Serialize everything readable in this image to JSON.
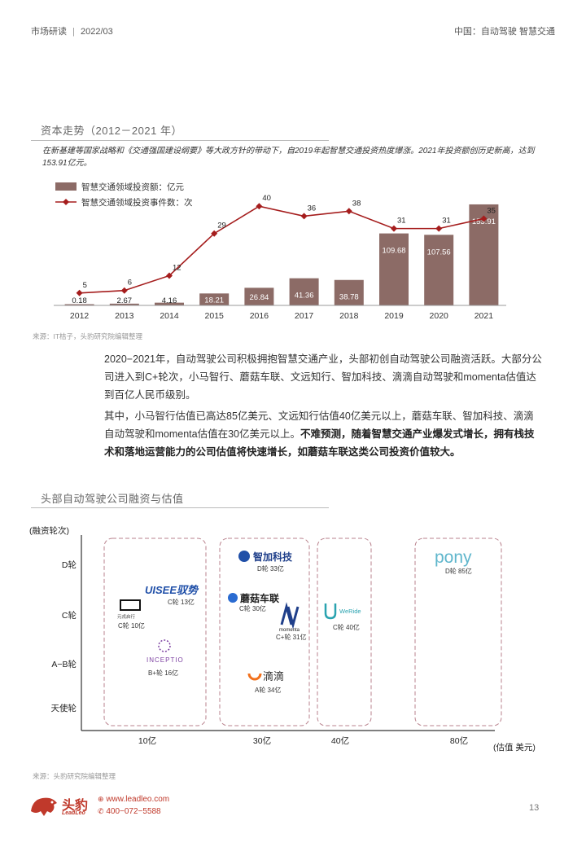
{
  "header": {
    "left": "市场研读",
    "date": "2022/03",
    "right": "中国：自动驾驶 智慧交通"
  },
  "section1": {
    "title": "资本走势（2012－2021 年）",
    "caption": "在新基建等国家战略和《交通强国建设纲要》等大政方针的带动下，自2019年起智慧交通投资热度爆涨。2021年投资额创历史新高，达到153.91亿元。",
    "source": "来源：IT桔子，头豹研究院编辑整理"
  },
  "chart_data": {
    "type": "bar",
    "categories": [
      "2012",
      "2013",
      "2014",
      "2015",
      "2016",
      "2017",
      "2018",
      "2019",
      "2020",
      "2021"
    ],
    "series": [
      {
        "name": "智慧交通领域投资额：亿元",
        "kind": "bar",
        "color": "#8c6b66",
        "values": [
          0.18,
          2.67,
          4.16,
          18.21,
          26.84,
          41.36,
          38.78,
          109.68,
          107.56,
          153.91
        ]
      },
      {
        "name": "智慧交通领域投资事件数：次",
        "kind": "line",
        "color": "#a51d1d",
        "values": [
          5,
          6,
          12,
          29,
          40,
          36,
          38,
          31,
          31,
          35
        ]
      }
    ],
    "bar_labels": [
      "0.18",
      "2.67",
      "4.16",
      "18.21",
      "26.84",
      "41.36",
      "38.78",
      "109.68",
      "107.56",
      "153.91"
    ],
    "ylim_bar": [
      0,
      170
    ],
    "ylim_line": [
      0,
      45
    ],
    "legend_position": "top-left",
    "grid": false
  },
  "paragraph1": "2020−2021年，自动驾驶公司积极拥抱智慧交通产业，头部初创自动驾驶公司融资活跃。大部分公司进入到C+轮次，小马智行、蘑菇车联、文远知行、智加科技、滴滴自动驾驶和momenta估值达到百亿人民币级别。",
  "paragraph2": {
    "normal": "其中，小马智行估值已高达85亿美元、文远知行估值40亿美元以上，蘑菇车联、智加科技、滴滴自动驾驶和momenta估值在30亿美元以上。",
    "bold": "不难预测，随着智慧交通产业爆发式增长，拥有栈技术和落地运营能力的公司估值将快速增长，如蘑菇车联这类公司投资价值较大。"
  },
  "section2": {
    "title": "头部自动驾驶公司融资与估值",
    "y_axis_label": "(融资轮次)",
    "x_axis_label": "(估值 美元)",
    "y_ticks": [
      "D轮",
      "C轮",
      "A−B轮",
      "天使轮"
    ],
    "x_ticks": [
      "10亿",
      "30亿",
      "40亿",
      "80亿"
    ],
    "companies": [
      {
        "logo": "UISEE驭势",
        "note": "C轮 13亿"
      },
      {
        "logo": "元戎启行",
        "note": "C轮 10亿"
      },
      {
        "logo": "INCEPTIO",
        "note": "B+轮 16亿"
      },
      {
        "logo": "智加科技",
        "note": "D轮 33亿"
      },
      {
        "logo": "蘑菇车联",
        "note": "C轮 30亿"
      },
      {
        "logo": "momenta",
        "note": "C+轮 31亿"
      },
      {
        "logo": "滴滴",
        "note": "A轮 34亿"
      },
      {
        "logo": "WeRide",
        "note": "C轮 40亿"
      },
      {
        "logo": "pony",
        "note": "D轮 85亿"
      }
    ],
    "source": "来源：头豹研究院编辑整理"
  },
  "footer": {
    "brand": "头豹",
    "brand_en": "LeadLeo",
    "url": "www.leadleo.com",
    "phone": "400−072−5588",
    "page": "13"
  }
}
